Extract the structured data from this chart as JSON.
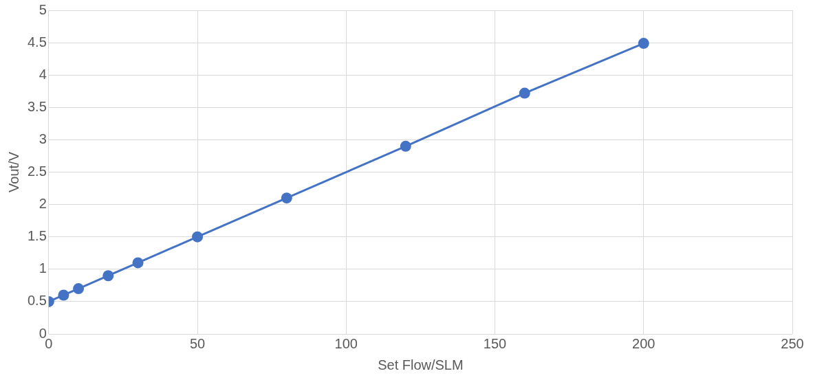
{
  "chart_data": {
    "type": "line",
    "xlabel": "Set Flow/SLM",
    "ylabel": "Vout/V",
    "x": [
      0,
      5,
      10,
      20,
      30,
      50,
      80,
      120,
      160,
      200
    ],
    "series": [
      {
        "color": "#4472c4",
        "values": [
          0.5,
          0.6,
          0.7,
          0.9,
          1.1,
          1.5,
          2.1,
          2.9,
          3.72,
          4.49
        ]
      }
    ],
    "xlim": [
      0,
      250
    ],
    "xticks": [
      0,
      50,
      100,
      150,
      200,
      250
    ],
    "ylim": [
      0,
      5
    ],
    "yticks": [
      0,
      0.5,
      1,
      1.5,
      2,
      2.5,
      3,
      3.5,
      4,
      4.5,
      5
    ],
    "grid": true,
    "marker": "circle",
    "line_style": "solid"
  }
}
